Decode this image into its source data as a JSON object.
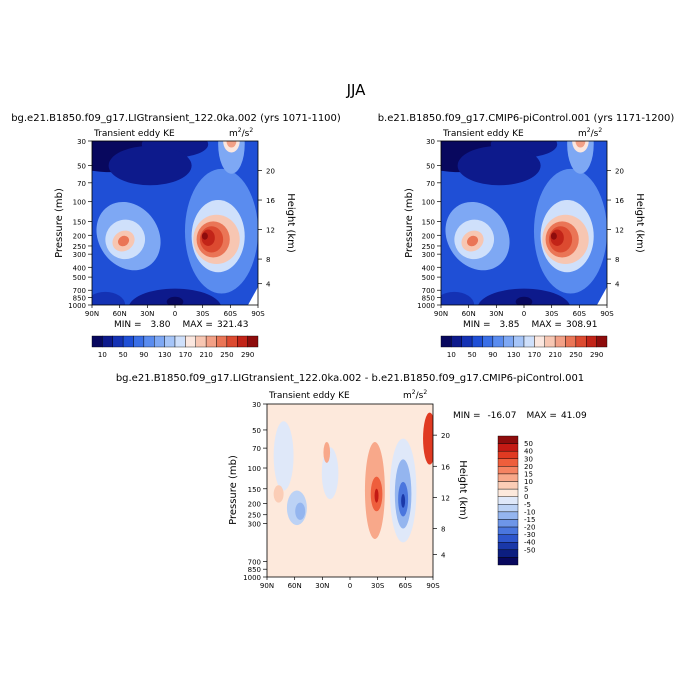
{
  "figure": {
    "title": "JJA"
  },
  "chart_data": [
    {
      "type": "heatmap",
      "title": "bg.e21.B1850.f09_g17.LIGtransient_122.0ka.002 (yrs 1071-1100)",
      "left_subtitle": "Transient eddy KE",
      "units": "m²/s²",
      "units_base": "m",
      "units_exp1": "2",
      "units_mid": "/s",
      "units_exp2": "2",
      "xlabel": "",
      "ylabel": "Pressure (mb)",
      "y2label": "Height (km)",
      "x_ticks": [
        "90N",
        "60N",
        "30N",
        "0",
        "30S",
        "60S",
        "90S"
      ],
      "y_ticks": [
        "30",
        "50",
        "70",
        "100",
        "150",
        "200",
        "250",
        "300",
        "400",
        "500",
        "700",
        "850",
        "1000"
      ],
      "y2_ticks": [
        "20",
        "16",
        "12",
        "8",
        "4"
      ],
      "stats": {
        "min_label": "MIN =",
        "min": "3.80",
        "max_label": "MAX =",
        "max": "321.43"
      },
      "colorbar": {
        "labels": [
          "10",
          "50",
          "90",
          "130",
          "170",
          "210",
          "250",
          "290"
        ],
        "levels": [
          10,
          30,
          50,
          70,
          90,
          110,
          130,
          150,
          170,
          190,
          210,
          230,
          250,
          270,
          290
        ],
        "colors": [
          "#08085e",
          "#0d1a8c",
          "#1432b4",
          "#1f4fd6",
          "#3a6fe6",
          "#5a8cef",
          "#7ea8f4",
          "#a6c5f8",
          "#cfe0fb",
          "#fbe7df",
          "#f7c6b2",
          "#f2a086",
          "#ea7556",
          "#dc4a30",
          "#c22418",
          "#8e0c0c"
        ]
      },
      "features": [
        {
          "region": "30S-60S / 200-300 mb",
          "peak": 321.43
        },
        {
          "region": "60N / 250 mb",
          "peak": 200
        },
        {
          "region": "60S / 30 mb",
          "peak": 180
        }
      ]
    },
    {
      "type": "heatmap",
      "title": "b.e21.B1850.f09_g17.CMIP6-piControl.001 (yrs 1171-1200)",
      "left_subtitle": "Transient eddy KE",
      "units": "m²/s²",
      "units_base": "m",
      "units_exp1": "2",
      "units_mid": "/s",
      "units_exp2": "2",
      "xlabel": "",
      "ylabel": "Pressure (mb)",
      "y2label": "Height (km)",
      "x_ticks": [
        "90N",
        "60N",
        "30N",
        "0",
        "30S",
        "60S",
        "90S"
      ],
      "y_ticks": [
        "30",
        "50",
        "70",
        "100",
        "150",
        "200",
        "250",
        "300",
        "400",
        "500",
        "700",
        "850",
        "1000"
      ],
      "y2_ticks": [
        "20",
        "16",
        "12",
        "8",
        "4"
      ],
      "stats": {
        "min_label": "MIN =",
        "min": "3.85",
        "max_label": "MAX =",
        "max": "308.91"
      },
      "colorbar": {
        "labels": [
          "10",
          "50",
          "90",
          "130",
          "170",
          "210",
          "250",
          "290"
        ],
        "levels": [
          10,
          30,
          50,
          70,
          90,
          110,
          130,
          150,
          170,
          190,
          210,
          230,
          250,
          270,
          290
        ],
        "colors": [
          "#08085e",
          "#0d1a8c",
          "#1432b4",
          "#1f4fd6",
          "#3a6fe6",
          "#5a8cef",
          "#7ea8f4",
          "#a6c5f8",
          "#cfe0fb",
          "#fbe7df",
          "#f7c6b2",
          "#f2a086",
          "#ea7556",
          "#dc4a30",
          "#c22418",
          "#8e0c0c"
        ]
      },
      "features": [
        {
          "region": "30S-60S / 200-300 mb",
          "peak": 308.91
        },
        {
          "region": "60N / 250 mb",
          "peak": 185
        },
        {
          "region": "60S / 30 mb",
          "peak": 170
        }
      ]
    },
    {
      "type": "heatmap",
      "title": "bg.e21.B1850.f09_g17.LIGtransient_122.0ka.002 - b.e21.B1850.f09_g17.CMIP6-piControl.001",
      "left_subtitle": "Transient eddy KE",
      "units": "m²/s²",
      "units_base": "m",
      "units_exp1": "2",
      "units_mid": "/s",
      "units_exp2": "2",
      "xlabel": "",
      "ylabel": "Pressure (mb)",
      "y2label": "Height (km)",
      "x_ticks": [
        "90N",
        "60N",
        "30N",
        "0",
        "30S",
        "60S",
        "90S"
      ],
      "y_ticks": [
        "30",
        "50",
        "70",
        "100",
        "150",
        "200",
        "250",
        "300",
        "700",
        "850",
        "1000"
      ],
      "y2_ticks": [
        "20",
        "16",
        "12",
        "8",
        "4"
      ],
      "stats": {
        "min_label": "MIN =",
        "min": "-16.07",
        "max_label": "MAX =",
        "max": "41.09"
      },
      "colorbar": {
        "labels": [
          "50",
          "40",
          "30",
          "20",
          "15",
          "10",
          "5",
          "0",
          "-5",
          "-10",
          "-15",
          "-20",
          "-30",
          "-40",
          "-50"
        ],
        "colors": [
          "#8e0c0c",
          "#c41a14",
          "#e03a22",
          "#ee5e3c",
          "#f58362",
          "#f8a88a",
          "#fbcdb6",
          "#fde9dc",
          "#dfe8f9",
          "#bcd2f5",
          "#94b5ef",
          "#6e96e8",
          "#4a76de",
          "#2e56cc",
          "#1a38a8",
          "#0c1e80",
          "#08085e"
        ]
      },
      "features": [
        {
          "region": "60S / 150-300 mb",
          "value": -16.07
        },
        {
          "region": "30S / 200 mb",
          "value": 41.09
        }
      ]
    }
  ]
}
